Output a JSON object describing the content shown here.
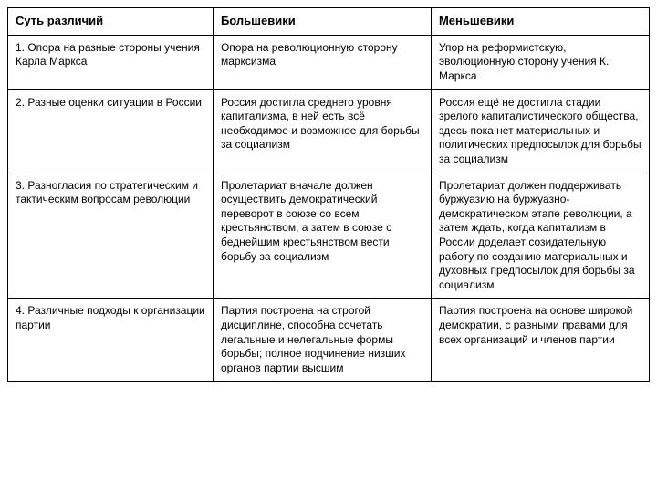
{
  "table": {
    "columns": [
      "Суть различий",
      "Большевики",
      "Меньшевики"
    ],
    "rows": [
      [
        "1. Опора на разные стороны учения Карла Маркса",
        "Опора на революционную сторону марксизма",
        "Упор на реформистскую, эволюционную сторону учения К. Маркса"
      ],
      [
        "2. Разные оценки ситуации в России",
        "Россия достигла среднего уровня капитализма, в ней есть всё необходимое и возможное для борьбы за социализм",
        "Россия ещё не достигла стадии зрелого капиталистического общества, здесь пока нет материальных и политических предпосылок для борьбы за социализм"
      ],
      [
        "3. Разногласия по стратегическим и тактическим вопросам революции",
        "Пролетариат вначале должен осуществить демократический переворот в союзе со всем крестьянством, а затем в союзе с беднейшим крестьянством вести борьбу за социализм",
        "Пролетариат должен поддерживать буржуазию на буржуазно-демократическом этапе революции, а затем ждать, когда капитализм в России доделает созидательную работу по созданию материальных и духовных предпосылок для борьбы за социализм"
      ],
      [
        "4. Различные подходы к организации партии",
        "Партия построена на строгой дисциплине, способна сочетать легальные и нелегальные формы борьбы; полное подчинение низших органов партии высшим",
        "Партия построена на основе широкой демократии, с равными правами для всех организаций и членов партии"
      ]
    ],
    "border_color": "#000000",
    "background_color": "#ffffff",
    "header_fontsize": 13,
    "cell_fontsize": 12
  }
}
